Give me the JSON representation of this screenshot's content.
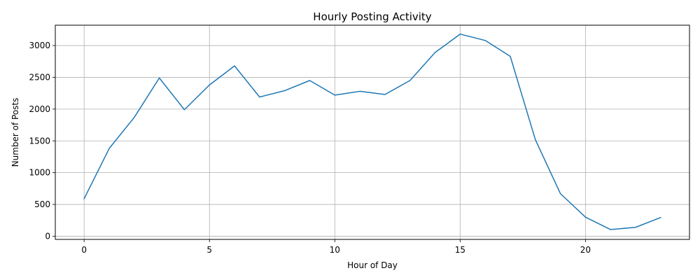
{
  "chart_data": {
    "type": "line",
    "title": "Hourly Posting Activity",
    "xlabel": "Hour of Day",
    "ylabel": "Number of Posts",
    "xlim": [
      -1.15,
      24.15
    ],
    "ylim": [
      -50,
      3320
    ],
    "xticks": [
      0,
      5,
      10,
      15,
      20
    ],
    "yticks": [
      0,
      500,
      1000,
      1500,
      2000,
      2500,
      3000
    ],
    "grid": true,
    "legend": "none",
    "series": [
      {
        "color": "#1f77b4",
        "x": [
          0,
          1,
          2,
          3,
          4,
          5,
          6,
          7,
          8,
          9,
          10,
          11,
          12,
          13,
          14,
          15,
          16,
          17,
          18,
          19,
          20,
          21,
          22,
          23
        ],
        "values": [
          590,
          1380,
          1870,
          2490,
          1990,
          2380,
          2680,
          2190,
          2290,
          2450,
          2220,
          2280,
          2230,
          2450,
          2890,
          3180,
          3080,
          2830,
          1520,
          670,
          300,
          105,
          140,
          295
        ]
      }
    ]
  }
}
